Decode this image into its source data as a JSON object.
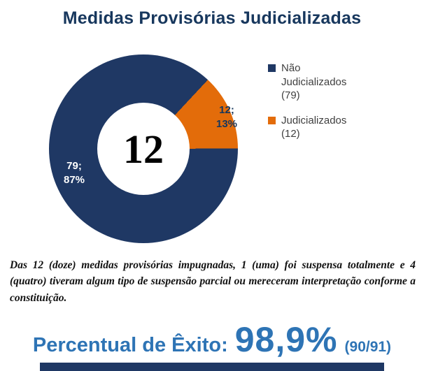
{
  "title": "Medidas Provisórias Judicializadas",
  "chart_data": {
    "type": "pie",
    "donut": true,
    "title": "Medidas Provisórias Judicializadas",
    "start_angle_deg": 43,
    "center_label": "12",
    "legend_position": "right",
    "slices": [
      {
        "name": "Não Judicializados",
        "value": 79,
        "pct": 87,
        "color": "#1F3864",
        "data_label": "79; 87%",
        "data_label_color": "#FFFFFF",
        "legend_label": "Não Judicializados (79)"
      },
      {
        "name": "Judicializados",
        "value": 12,
        "pct": 13,
        "color": "#E36C0A",
        "data_label": "12; 13%",
        "data_label_color": "#17375D",
        "legend_label": "Judicializados (12)"
      }
    ]
  },
  "note": "Das 12 (doze) medidas provisórias impugnadas, 1 (uma) foi suspensa totalmente e 4 (quatro) tiveram algum tipo de suspensão parcial ou mereceram interpretação conforme a constituição.",
  "footer": {
    "label": "Percentual de Êxito:",
    "value": "98,9%",
    "detail": "(90/91)"
  },
  "colors": {
    "navy": "#1F3864",
    "orange": "#E36C0A",
    "title": "#17375D",
    "footer_blue": "#2E74B5",
    "legend_text": "#404040"
  }
}
